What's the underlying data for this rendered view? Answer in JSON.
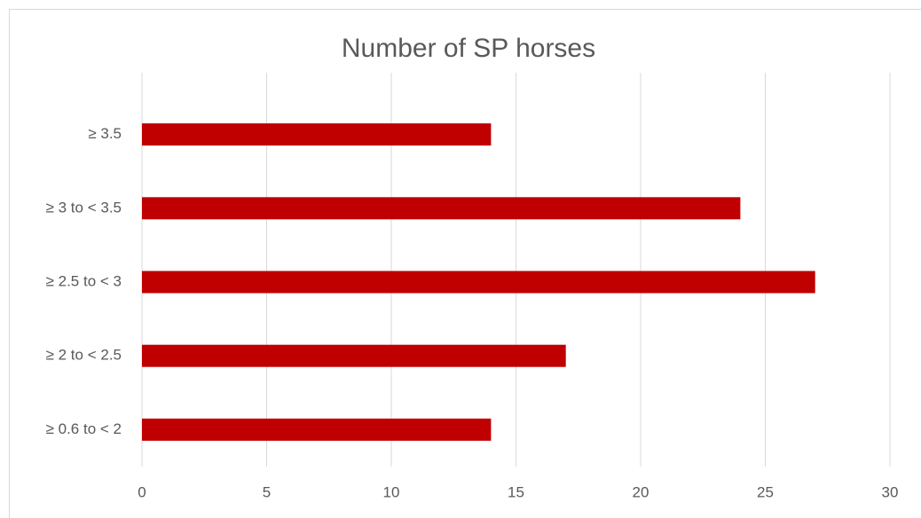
{
  "chart_data": {
    "type": "bar",
    "orientation": "horizontal",
    "title": "Number of SP horses",
    "categories": [
      "≥ 3.5",
      "≥ 3 to < 3.5",
      "≥ 2.5 to < 3",
      "≥ 2 to < 2.5",
      "≥ 0.6 to < 2"
    ],
    "values": [
      14,
      24,
      27,
      17,
      14
    ],
    "color": "#c00000",
    "xlim": [
      0,
      30
    ],
    "xticks": [
      0,
      5,
      10,
      15,
      20,
      25,
      30
    ],
    "grid": true
  }
}
